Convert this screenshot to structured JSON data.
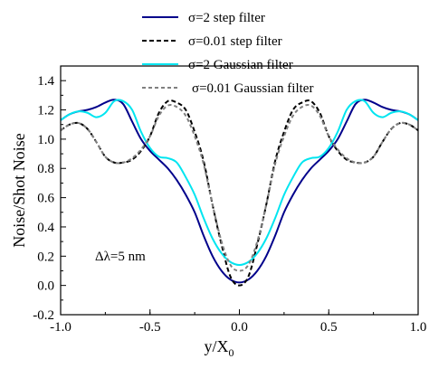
{
  "chart_data": {
    "type": "line",
    "title": "",
    "xlabel": "y/X",
    "xlabel_sub": "0",
    "ylabel": "Noise/Shot Noise",
    "xlim": [
      -1.0,
      1.0
    ],
    "ylim": [
      -0.2,
      1.5
    ],
    "xticks": [
      -1.0,
      -0.5,
      0.0,
      0.5,
      1.0
    ],
    "xtick_labels": [
      "-1.0",
      "-0.5",
      "0.0",
      "0.5",
      "1.0"
    ],
    "yticks": [
      -0.2,
      0.0,
      0.2,
      0.4,
      0.6,
      0.8,
      1.0,
      1.2,
      1.4
    ],
    "ytick_labels": [
      "-0.2",
      "0.0",
      "0.2",
      "0.4",
      "0.6",
      "0.8",
      "1.0",
      "1.2",
      "1.4"
    ],
    "grid": false,
    "legend_position": "top",
    "annotation": "Δλ=5 nm",
    "series": [
      {
        "name": "σ=2 step filter",
        "color": "#00008b",
        "dash": "solid",
        "x": [
          0.0,
          0.05,
          0.1,
          0.15,
          0.2,
          0.25,
          0.3,
          0.35,
          0.4,
          0.45,
          0.5,
          0.55,
          0.6,
          0.65,
          0.7,
          0.75,
          0.8,
          0.85,
          0.9,
          0.95,
          1.0
        ],
        "y": [
          0.02,
          0.04,
          0.1,
          0.2,
          0.34,
          0.5,
          0.62,
          0.72,
          0.8,
          0.86,
          0.92,
          1.0,
          1.12,
          1.24,
          1.27,
          1.25,
          1.22,
          1.2,
          1.19,
          1.17,
          1.13
        ]
      },
      {
        "name": "σ=0.01 step filter",
        "color": "#000000",
        "dash": "5,3",
        "x": [
          0.0,
          0.05,
          0.1,
          0.15,
          0.2,
          0.25,
          0.3,
          0.35,
          0.4,
          0.45,
          0.5,
          0.55,
          0.6,
          0.65,
          0.7,
          0.75,
          0.8,
          0.85,
          0.9,
          0.95,
          1.0
        ],
        "y": [
          0.0,
          0.06,
          0.28,
          0.55,
          0.85,
          1.05,
          1.2,
          1.25,
          1.26,
          1.18,
          1.02,
          0.92,
          0.86,
          0.84,
          0.84,
          0.88,
          0.98,
          1.07,
          1.11,
          1.1,
          1.06
        ]
      },
      {
        "name": "σ=2 Gaussian filter",
        "color": "#00e5f0",
        "dash": "solid",
        "x": [
          0.0,
          0.05,
          0.1,
          0.15,
          0.2,
          0.25,
          0.3,
          0.35,
          0.4,
          0.45,
          0.5,
          0.55,
          0.6,
          0.65,
          0.7,
          0.75,
          0.8,
          0.85,
          0.9,
          0.95,
          1.0
        ],
        "y": [
          0.14,
          0.16,
          0.22,
          0.32,
          0.46,
          0.62,
          0.74,
          0.84,
          0.87,
          0.88,
          0.94,
          1.05,
          1.2,
          1.26,
          1.26,
          1.18,
          1.15,
          1.18,
          1.19,
          1.17,
          1.13
        ]
      },
      {
        "name": "σ=0.01 Gaussian filter",
        "color": "#808080",
        "dash": "4,3",
        "x": [
          0.0,
          0.05,
          0.1,
          0.15,
          0.2,
          0.25,
          0.3,
          0.35,
          0.4,
          0.45,
          0.5,
          0.55,
          0.6,
          0.65,
          0.7,
          0.75,
          0.8,
          0.85,
          0.9,
          0.95,
          1.0
        ],
        "y": [
          0.1,
          0.14,
          0.3,
          0.55,
          0.83,
          1.02,
          1.16,
          1.22,
          1.23,
          1.16,
          1.02,
          0.93,
          0.87,
          0.84,
          0.84,
          0.88,
          0.98,
          1.07,
          1.11,
          1.1,
          1.06
        ]
      }
    ]
  }
}
